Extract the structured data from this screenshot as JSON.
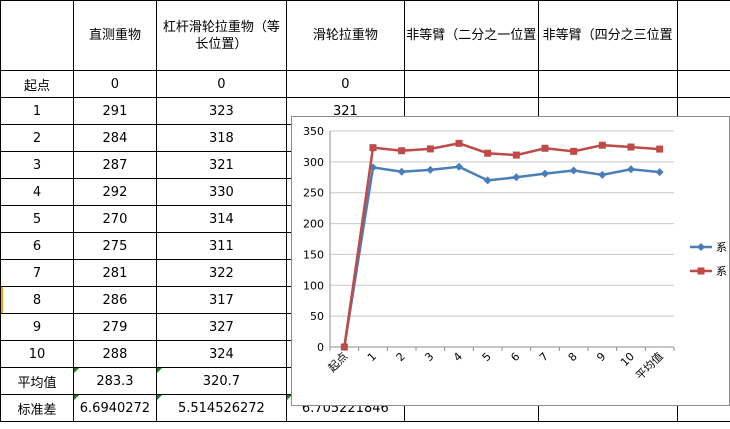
{
  "sheet": {
    "headers": [
      "",
      "直测重物",
      "杠杆滑轮拉重物（等长位置）",
      "滑轮拉重物",
      "非等臂（二分之一位置",
      "非等臂（四分之三位置",
      ""
    ],
    "rows": [
      {
        "label": "起点",
        "a": "0",
        "b": "0",
        "c": "0"
      },
      {
        "label": "1",
        "a": "291",
        "b": "323",
        "c": "321"
      },
      {
        "label": "2",
        "a": "284",
        "b": "318",
        "c": ""
      },
      {
        "label": "3",
        "a": "287",
        "b": "321",
        "c": ""
      },
      {
        "label": "4",
        "a": "292",
        "b": "330",
        "c": ""
      },
      {
        "label": "5",
        "a": "270",
        "b": "314",
        "c": ""
      },
      {
        "label": "6",
        "a": "275",
        "b": "311",
        "c": ""
      },
      {
        "label": "7",
        "a": "281",
        "b": "322",
        "c": ""
      },
      {
        "label": "8",
        "a": "286",
        "b": "317",
        "c": ""
      },
      {
        "label": "9",
        "a": "279",
        "b": "327",
        "c": ""
      },
      {
        "label": "10",
        "a": "288",
        "b": "324",
        "c": ""
      },
      {
        "label": "平均值",
        "a": "283.3",
        "b": "320.7",
        "c": ""
      },
      {
        "label": "标准差",
        "a": "6.6940272",
        "b": "5.514526272",
        "c": "6.705221846"
      }
    ]
  },
  "chart_data": {
    "type": "line",
    "categories": [
      "起点",
      "1",
      "2",
      "3",
      "4",
      "5",
      "6",
      "7",
      "8",
      "9",
      "10",
      "平均值"
    ],
    "series": [
      {
        "name": "系",
        "values": [
          0,
          291,
          284,
          287,
          292,
          270,
          275,
          281,
          286,
          279,
          288,
          283.3
        ],
        "color": "#4a7ebb",
        "marker": "diamond"
      },
      {
        "name": "系",
        "values": [
          0,
          323,
          318,
          321,
          330,
          314,
          311,
          322,
          317,
          327,
          324,
          320.7
        ],
        "color": "#be4b48",
        "marker": "square"
      }
    ],
    "yticks": [
      "0",
      "50",
      "100",
      "150",
      "200",
      "250",
      "300",
      "350"
    ],
    "ylim": [
      0,
      350
    ],
    "grid": true,
    "legend": "right"
  }
}
